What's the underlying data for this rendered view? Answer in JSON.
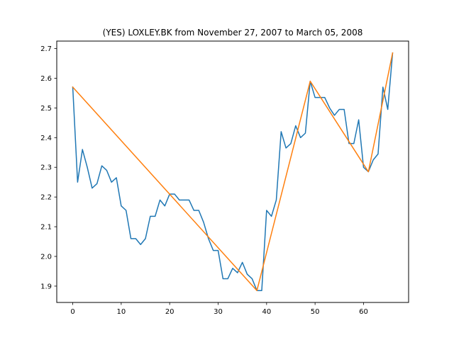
{
  "chart_data": {
    "type": "line",
    "title": "(YES) LOXLEY.BK from November 27, 2007 to March 05, 2008",
    "xlabel": "",
    "ylabel": "",
    "xlim": [
      -3.3,
      69.3
    ],
    "ylim": [
      1.845,
      2.725
    ],
    "xticks": [
      0,
      10,
      20,
      30,
      40,
      50,
      60
    ],
    "yticks": [
      1.9,
      2.0,
      2.1,
      2.2,
      2.3,
      2.4,
      2.5,
      2.6,
      2.7
    ],
    "xtick_labels": [
      "0",
      "10",
      "20",
      "30",
      "40",
      "50",
      "60"
    ],
    "ytick_labels": [
      "1.9",
      "2.0",
      "2.1",
      "2.2",
      "2.3",
      "2.4",
      "2.5",
      "2.6",
      "2.7"
    ],
    "grid": false,
    "series": [
      {
        "color": "#1f77b4",
        "x": [
          0,
          1,
          2,
          3,
          4,
          5,
          6,
          7,
          8,
          9,
          10,
          11,
          12,
          13,
          14,
          15,
          16,
          17,
          18,
          19,
          20,
          21,
          22,
          23,
          24,
          25,
          26,
          27,
          28,
          29,
          30,
          31,
          32,
          33,
          34,
          35,
          36,
          37,
          38,
          39,
          40,
          41,
          42,
          43,
          44,
          45,
          46,
          47,
          48,
          49,
          50,
          51,
          52,
          53,
          54,
          55,
          56,
          57,
          58,
          59,
          60,
          61,
          62,
          63,
          64,
          65,
          66
        ],
        "y": [
          2.57,
          2.25,
          2.36,
          2.3,
          2.23,
          2.245,
          2.305,
          2.29,
          2.25,
          2.265,
          2.17,
          2.155,
          2.06,
          2.06,
          2.04,
          2.06,
          2.135,
          2.135,
          2.19,
          2.17,
          2.21,
          2.21,
          2.19,
          2.19,
          2.19,
          2.155,
          2.155,
          2.115,
          2.06,
          2.02,
          2.02,
          1.925,
          1.925,
          1.96,
          1.945,
          1.98,
          1.94,
          1.925,
          1.885,
          1.885,
          2.155,
          2.135,
          2.19,
          2.42,
          2.365,
          2.38,
          2.44,
          2.4,
          2.415,
          2.59,
          2.535,
          2.535,
          2.535,
          2.5,
          2.475,
          2.495,
          2.495,
          2.38,
          2.38,
          2.46,
          2.3,
          2.285,
          2.325,
          2.345,
          2.57,
          2.495,
          2.685
        ]
      },
      {
        "color": "#ff7f0e",
        "x": [
          0,
          38,
          49,
          61,
          66
        ],
        "y": [
          2.57,
          1.885,
          2.59,
          2.285,
          2.685
        ]
      }
    ]
  }
}
